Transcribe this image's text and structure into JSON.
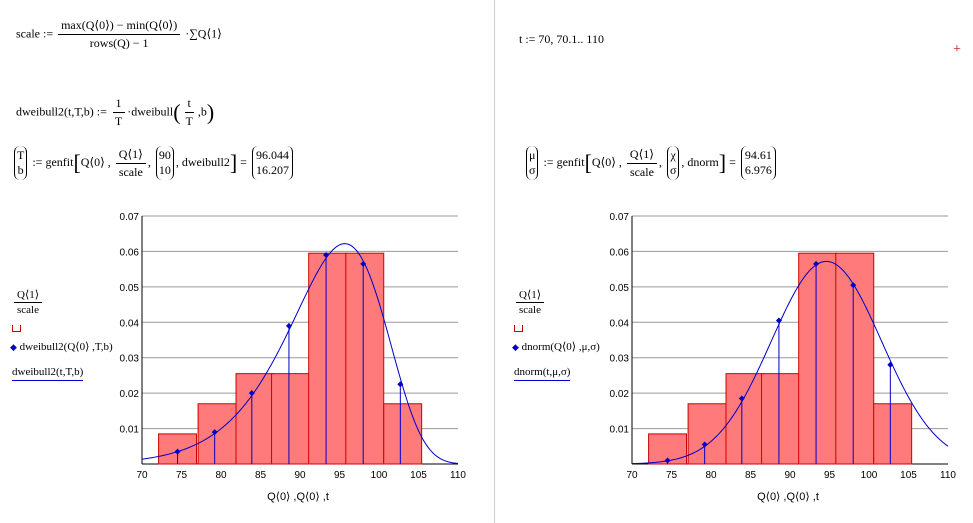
{
  "left": {
    "scale_lhs": "scale :=",
    "scale_num": "max(Q⟨0⟩) − min(Q⟨0⟩)",
    "scale_den": "rows(Q) − 1",
    "scale_tail": "·∑Q⟨1⟩",
    "dweibull_lhs": "dweibull2(t,T,b) :=",
    "dweibull_frac_num": "1",
    "dweibull_frac_den": "T",
    "dweibull_call": "·dweibull",
    "dweibull_arg_num": "t",
    "dweibull_arg_den": "T",
    "dweibull_arg_b": ",b",
    "genfit_lhs_1": "T",
    "genfit_lhs_2": "b",
    "genfit_assign": ":= genfit",
    "genfit_arg1": "Q⟨0⟩ ,",
    "genfit_arg2_num": "Q⟨1⟩",
    "genfit_arg2_den": "scale",
    "genfit_guess_1": "90",
    "genfit_guess_2": "10",
    "genfit_fn": ", dweibull2",
    "result_1": "96.044",
    "result_2": "16.207",
    "legend": {
      "l1_num": "Q⟨1⟩",
      "l1_den": "scale",
      "l2": "dweibull2(Q⟨0⟩ ,T,b)",
      "l3": "dweibull2(t,T,b)"
    },
    "xlabel": "Q⟨0⟩ ,Q⟨0⟩ ,t"
  },
  "right": {
    "t_def": "t := 70, 70.1.. 110",
    "genfit_lhs_1": "μ",
    "genfit_lhs_2": "σ",
    "genfit_assign": ":= genfit",
    "genfit_arg1": "Q⟨0⟩ ,",
    "genfit_arg2_num": "Q⟨1⟩",
    "genfit_arg2_den": "scale",
    "genfit_guess_1": "χ",
    "genfit_guess_2": "σ",
    "genfit_fn": ", dnorm",
    "result_1": "94.61",
    "result_2": "6.976",
    "legend": {
      "l1_num": "Q⟨1⟩",
      "l1_den": "scale",
      "l2": "dnorm(Q⟨0⟩ ,μ,σ)",
      "l3": "dnorm(t,μ,σ)"
    },
    "xlabel": "Q⟨0⟩ ,Q⟨0⟩ ,t",
    "plus_marker": "+"
  },
  "colors": {
    "bar_fill": "#ff7b7b",
    "bar_stroke": "#cc0000",
    "curve": "#0000cc",
    "grid": "#9a9a9a"
  },
  "chart_data": [
    {
      "type": "bar",
      "xlim": [
        70,
        110
      ],
      "ylim": [
        0,
        0.07
      ],
      "xticks": [
        70,
        75,
        80,
        85,
        90,
        95,
        100,
        105,
        110
      ],
      "yticks": [
        0.01,
        0.02,
        0.03,
        0.04,
        0.05,
        0.06,
        0.07
      ],
      "ytick_labels": [
        "0.01",
        "0.02",
        "0.03",
        "0.04",
        "0.05",
        "0.06",
        "0.07"
      ],
      "grid": true,
      "histogram": [
        {
          "x": 74.5,
          "width": 4.8,
          "value": 0.0085
        },
        {
          "x": 79.5,
          "width": 4.8,
          "value": 0.017
        },
        {
          "x": 84.3,
          "width": 4.8,
          "value": 0.0255
        },
        {
          "x": 88.8,
          "width": 4.8,
          "value": 0.0255
        },
        {
          "x": 93.5,
          "width": 4.8,
          "value": 0.0595
        },
        {
          "x": 98.2,
          "width": 4.8,
          "value": 0.0595
        },
        {
          "x": 103,
          "width": 4.8,
          "value": 0.017
        }
      ],
      "fit_points": [
        {
          "x": 74.5,
          "y": 0.0035
        },
        {
          "x": 79.2,
          "y": 0.009
        },
        {
          "x": 83.9,
          "y": 0.02
        },
        {
          "x": 88.6,
          "y": 0.039
        },
        {
          "x": 93.3,
          "y": 0.059
        },
        {
          "x": 98.0,
          "y": 0.0565
        },
        {
          "x": 102.7,
          "y": 0.0225
        }
      ],
      "curve": {
        "family": "weibull",
        "T": 96.044,
        "b": 16.207
      }
    },
    {
      "type": "bar",
      "xlim": [
        70,
        110
      ],
      "ylim": [
        0,
        0.07
      ],
      "xticks": [
        70,
        75,
        80,
        85,
        90,
        95,
        100,
        105,
        110
      ],
      "yticks": [
        0.01,
        0.02,
        0.03,
        0.04,
        0.05,
        0.06,
        0.07
      ],
      "ytick_labels": [
        "0.01",
        "0.02",
        "0.03",
        "0.04",
        "0.05",
        "0.06",
        "0.07"
      ],
      "grid": true,
      "histogram": [
        {
          "x": 74.5,
          "width": 4.8,
          "value": 0.0085
        },
        {
          "x": 79.5,
          "width": 4.8,
          "value": 0.017
        },
        {
          "x": 84.3,
          "width": 4.8,
          "value": 0.0255
        },
        {
          "x": 88.8,
          "width": 4.8,
          "value": 0.0255
        },
        {
          "x": 93.5,
          "width": 4.8,
          "value": 0.0595
        },
        {
          "x": 98.2,
          "width": 4.8,
          "value": 0.0595
        },
        {
          "x": 103,
          "width": 4.8,
          "value": 0.017
        }
      ],
      "fit_points": [
        {
          "x": 74.5,
          "y": 0.001
        },
        {
          "x": 79.2,
          "y": 0.0055
        },
        {
          "x": 83.9,
          "y": 0.0185
        },
        {
          "x": 88.6,
          "y": 0.0405
        },
        {
          "x": 93.3,
          "y": 0.0565
        },
        {
          "x": 98.0,
          "y": 0.0505
        },
        {
          "x": 102.7,
          "y": 0.028
        }
      ],
      "curve": {
        "family": "normal",
        "mu": 94.61,
        "sigma": 6.976
      }
    }
  ]
}
